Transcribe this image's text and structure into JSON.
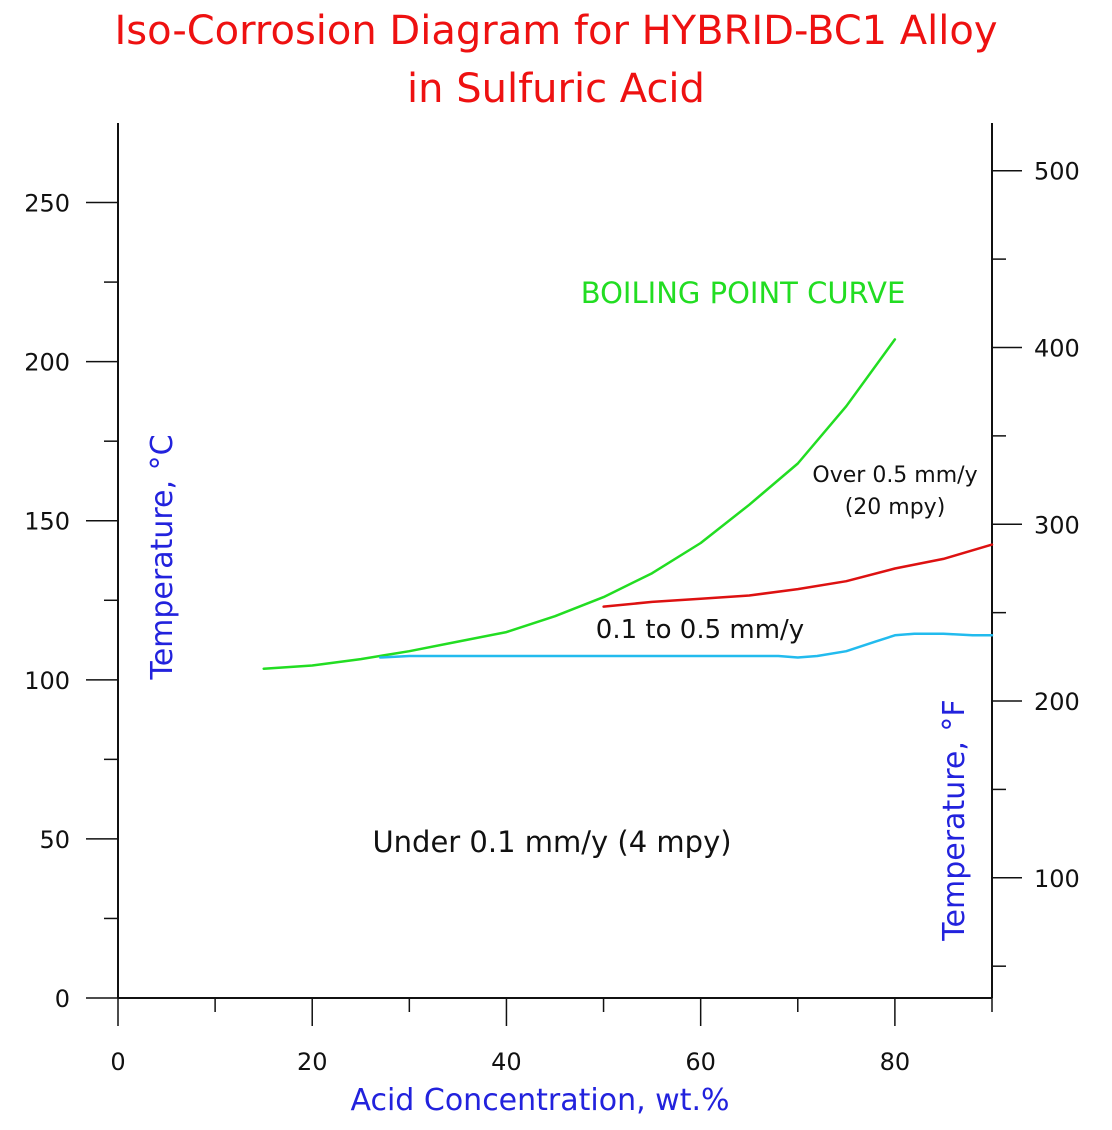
{
  "title_line1": "Iso-Corrosion Diagram for HYBRID-BC1 Alloy",
  "title_line2": "in Sulfuric Acid",
  "chart_data": {
    "type": "line",
    "title": "Iso-Corrosion Diagram for HYBRID-BC1 Alloy in Sulfuric Acid",
    "xlabel": "Acid Concentration, wt.%",
    "ylabel": "Temperature, °C",
    "ylabel_right": "Temperature, °F",
    "xlim": [
      0,
      90
    ],
    "ylim": [
      0,
      275
    ],
    "ylim_right_F": [
      32,
      527
    ],
    "x_ticks_major": [
      0,
      20,
      40,
      60,
      80
    ],
    "x_ticks_minor": [
      10,
      30,
      50,
      70,
      90
    ],
    "y_ticks_major": [
      0,
      50,
      100,
      150,
      200,
      250
    ],
    "y_ticks_minor": [
      25,
      75,
      125,
      175,
      225
    ],
    "y_right_ticks_major": [
      100,
      200,
      300,
      400,
      500
    ],
    "y_right_ticks_minor": [
      50,
      150,
      250,
      350,
      450
    ],
    "grid": false,
    "series": [
      {
        "name": "BOILING POINT CURVE",
        "color": "#22dd22",
        "x": [
          15,
          20,
          25,
          30,
          35,
          40,
          45,
          50,
          55,
          60,
          65,
          70,
          75,
          80
        ],
        "y": [
          103.5,
          104.5,
          106.5,
          109,
          112,
          115,
          120,
          126,
          133.5,
          143,
          155,
          168,
          186,
          207
        ]
      },
      {
        "color": "#dd1111",
        "x": [
          50,
          55,
          60,
          65,
          70,
          75,
          80,
          85,
          90
        ],
        "y": [
          123,
          124.5,
          125.5,
          126.5,
          128.5,
          131,
          135,
          138,
          142.5
        ]
      },
      {
        "color": "#22bbee",
        "x": [
          27,
          30,
          40,
          50,
          60,
          68,
          70,
          72,
          75,
          78,
          80,
          82,
          85,
          88,
          90
        ],
        "y": [
          107,
          107.5,
          107.5,
          107.5,
          107.5,
          107.5,
          107,
          107.5,
          109,
          112,
          114,
          114.5,
          114.5,
          114,
          114
        ]
      }
    ],
    "annotations": [
      {
        "text": "BOILING POINT CURVE",
        "color": "#22dd22"
      },
      {
        "text": "Over 0.5 mm/y",
        "color": "#111111"
      },
      {
        "text": "(20 mpy)",
        "color": "#111111"
      },
      {
        "text": "0.1  to 0.5 mm/y",
        "color": "#111111"
      },
      {
        "text": "Under 0.1 mm/y (4 mpy)",
        "color": "#111111"
      }
    ],
    "axis_label_color": "#2222dd",
    "title_color": "#ee1111"
  }
}
